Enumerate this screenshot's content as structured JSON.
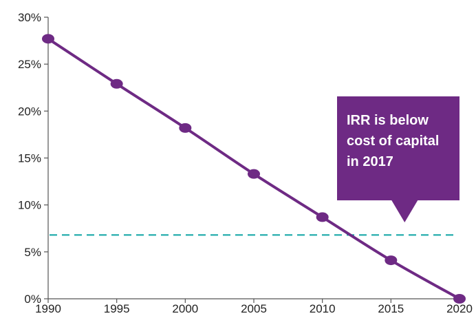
{
  "chart_data": {
    "type": "line",
    "title": "",
    "xlabel": "",
    "ylabel": "",
    "x": [
      1990,
      1995,
      2000,
      2005,
      2010,
      2015,
      2020
    ],
    "series": [
      {
        "values": [
          27.7,
          22.9,
          18.2,
          13.3,
          8.7,
          4.1,
          0.0
        ]
      }
    ],
    "xlim": [
      1990,
      2020
    ],
    "ylim": [
      0,
      30
    ],
    "x_ticks": [
      "1990",
      "1995",
      "2000",
      "2005",
      "2010",
      "2015",
      "2020"
    ],
    "y_ticks": [
      "0%",
      "5%",
      "10%",
      "15%",
      "20%",
      "25%",
      "30%"
    ],
    "y_tick_values": [
      0,
      5,
      10,
      15,
      20,
      25,
      30
    ],
    "reference_line": {
      "y": 6.8,
      "style": "dashed"
    },
    "callout": {
      "lines": [
        "IRR is below",
        "cost of capital",
        "in 2017"
      ],
      "points_to_x": 2016
    },
    "grid": false,
    "colors": {
      "series": "#6e2a84",
      "reference_line": "#1aa9a9",
      "callout_bg": "#6e2a84",
      "callout_text": "#ffffff",
      "axis": "#555555",
      "tick_text": "#222222"
    }
  }
}
